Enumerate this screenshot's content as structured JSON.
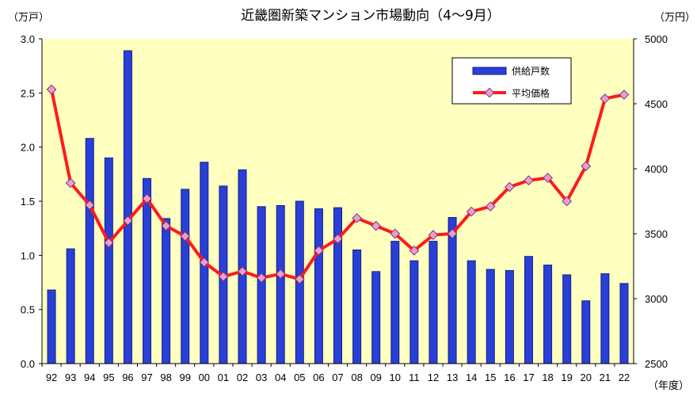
{
  "chart_data": {
    "type": "bar",
    "title": "近畿圏新築マンション市場動向（4～9月）",
    "left_unit": "（万戸）",
    "right_unit": "（万円）",
    "x_unit": "（年度）",
    "categories": [
      "92",
      "93",
      "94",
      "95",
      "96",
      "97",
      "98",
      "99",
      "00",
      "01",
      "02",
      "03",
      "04",
      "05",
      "06",
      "07",
      "08",
      "09",
      "10",
      "11",
      "12",
      "13",
      "14",
      "15",
      "16",
      "17",
      "18",
      "19",
      "20",
      "21",
      "22"
    ],
    "y_left": {
      "min": 0,
      "max": 3.0,
      "ticks": [
        "0.0",
        "0.5",
        "1.0",
        "1.5",
        "2.0",
        "2.5",
        "3.0"
      ]
    },
    "y_right": {
      "min": 2500,
      "max": 5000,
      "ticks": [
        "2500",
        "3000",
        "3500",
        "4000",
        "4500",
        "5000"
      ]
    },
    "legend_position": "top-right",
    "series": [
      {
        "name": "供給戸数",
        "type": "bar",
        "axis": "left",
        "color": "#2a3fd6",
        "values": [
          0.68,
          1.06,
          2.08,
          1.9,
          2.89,
          1.71,
          1.34,
          1.61,
          1.86,
          1.64,
          1.79,
          1.45,
          1.46,
          1.5,
          1.43,
          1.44,
          1.05,
          0.85,
          1.13,
          0.95,
          1.13,
          1.35,
          0.95,
          0.87,
          0.86,
          0.99,
          0.91,
          0.82,
          0.58,
          0.83,
          0.74
        ]
      },
      {
        "name": "平均価格",
        "type": "line",
        "axis": "right",
        "color": "#ff1a1a",
        "marker_color": "#e6a0d0",
        "values": [
          4610,
          3890,
          3720,
          3430,
          3600,
          3770,
          3560,
          3480,
          3280,
          3170,
          3210,
          3160,
          3190,
          3150,
          3370,
          3460,
          3620,
          3560,
          3500,
          3370,
          3490,
          3500,
          3670,
          3710,
          3860,
          3910,
          3930,
          3750,
          4020,
          4540,
          4570
        ]
      }
    ]
  }
}
